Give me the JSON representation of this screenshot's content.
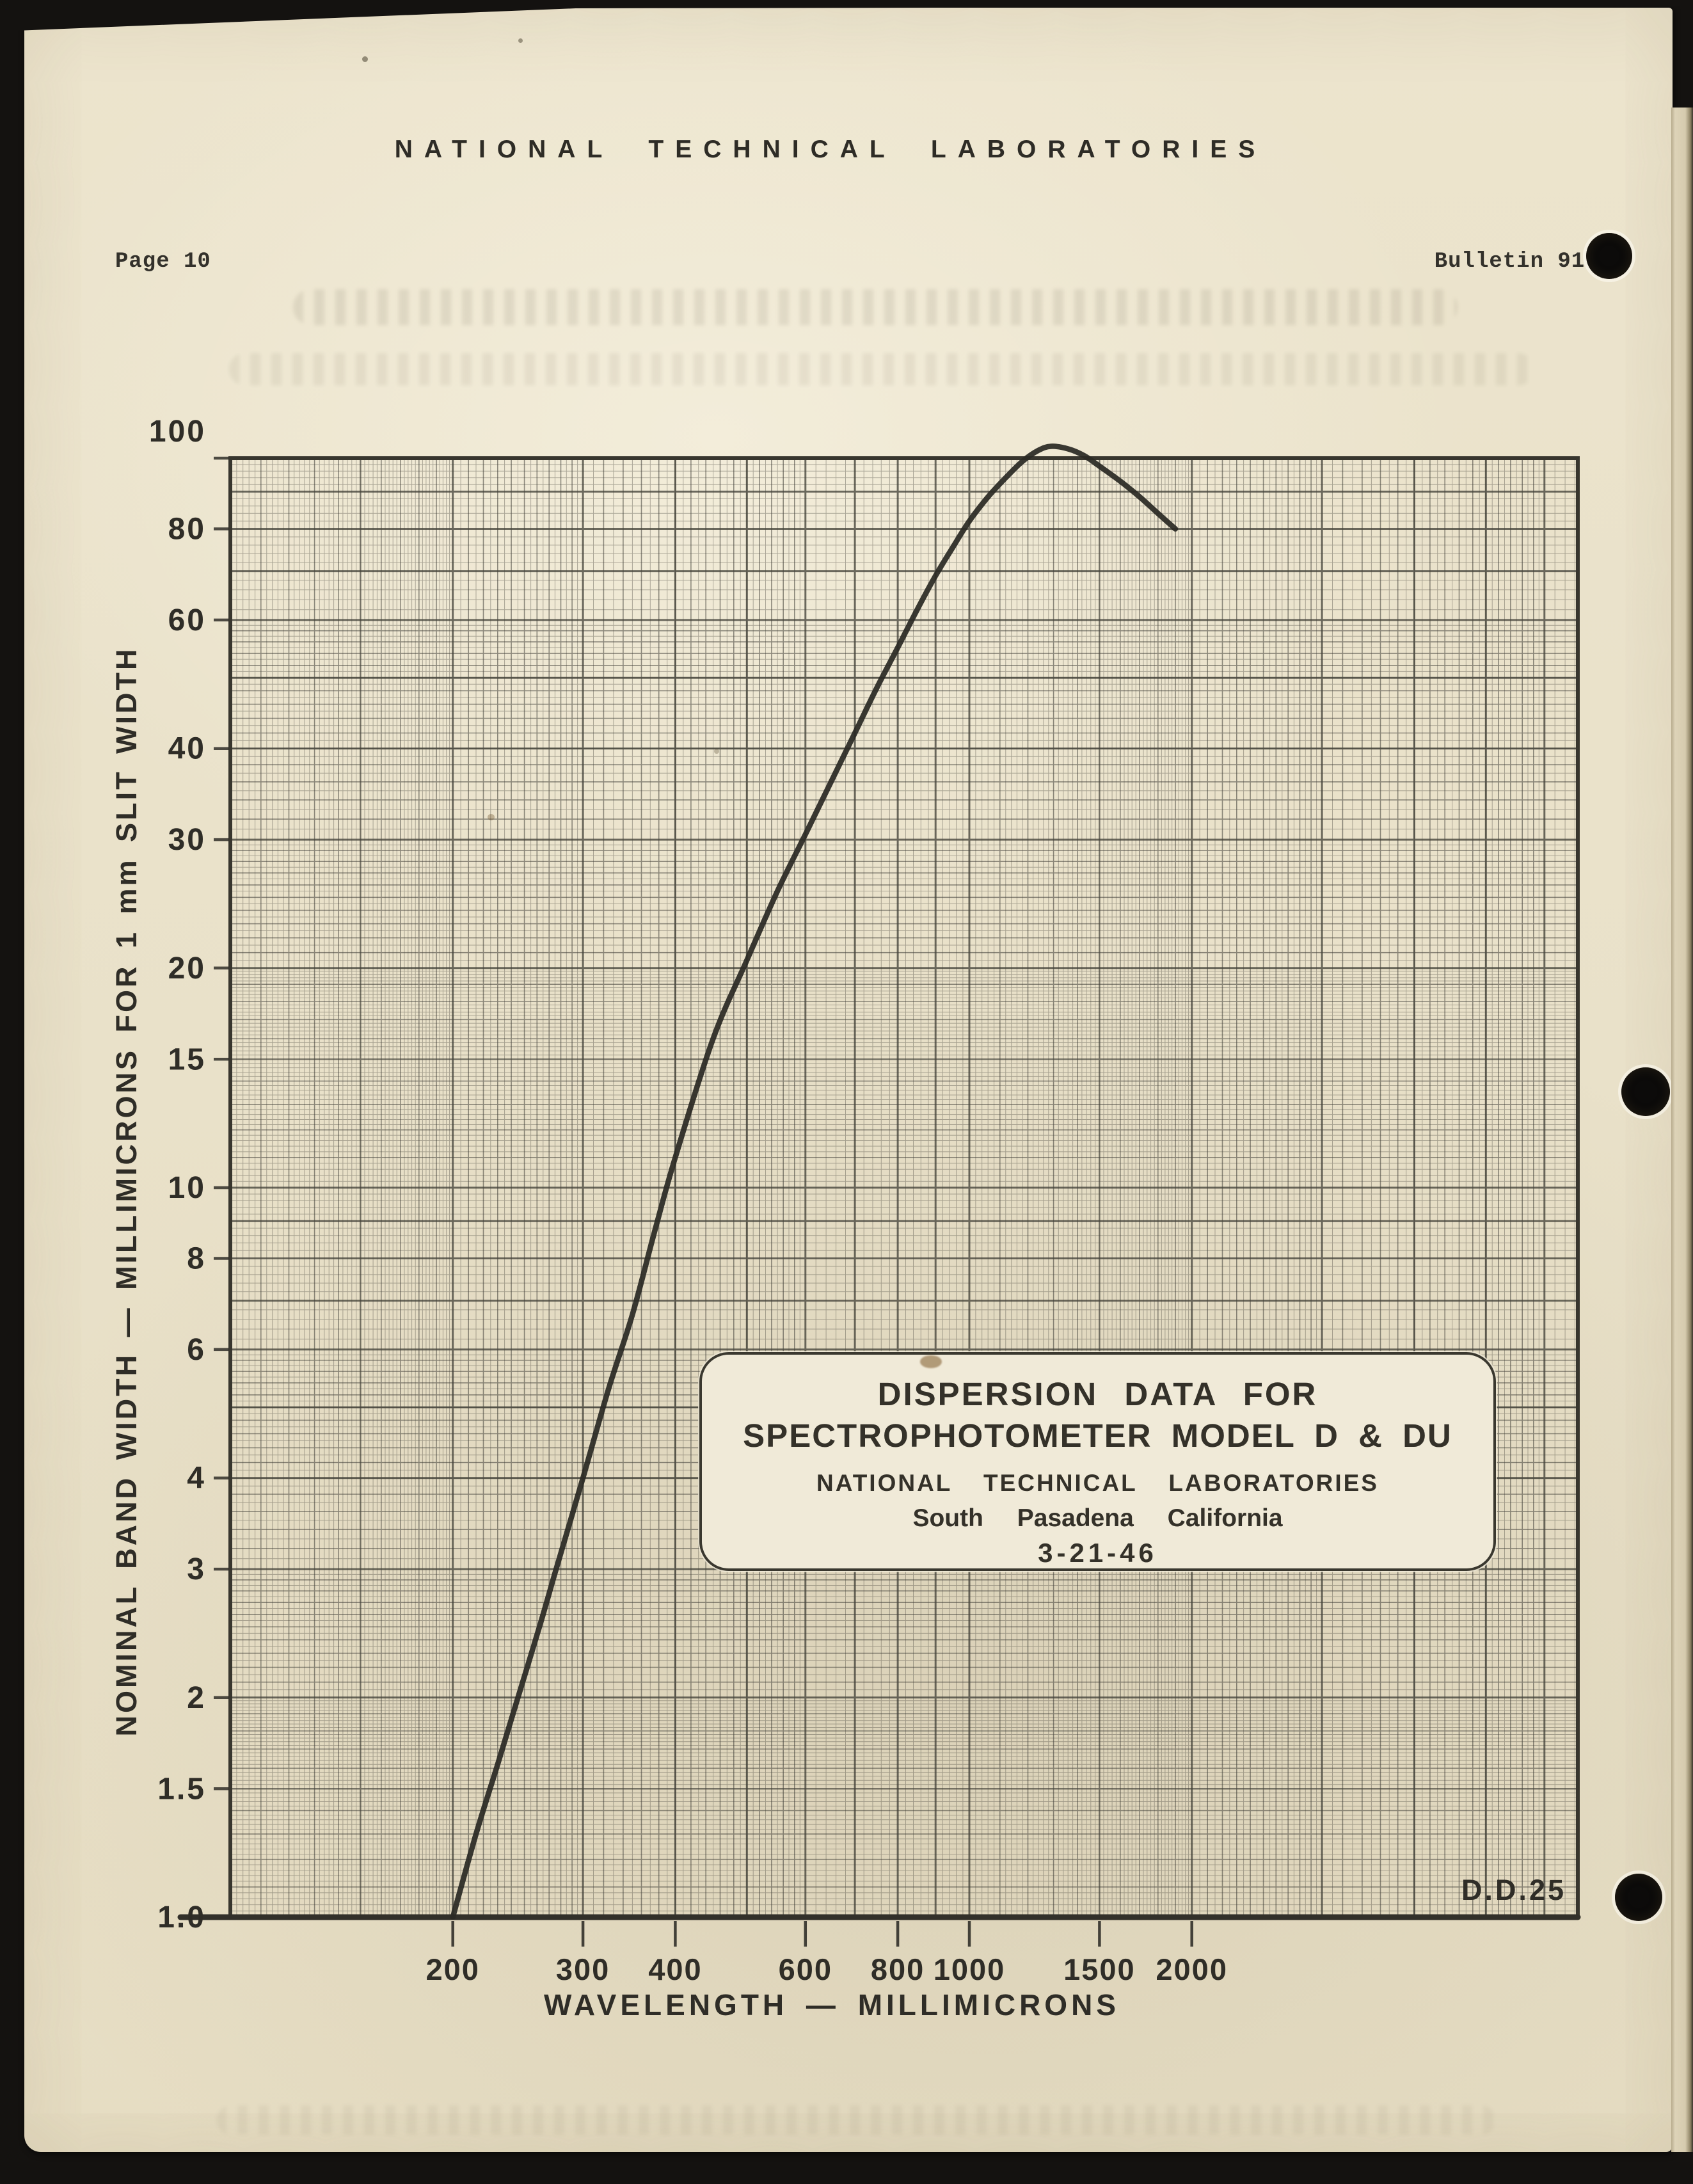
{
  "page": {
    "header": "NATIONAL TECHNICAL LABORATORIES",
    "page_label": "Page 10",
    "bulletin_label": "Bulletin 91-B"
  },
  "chart_data": {
    "type": "line",
    "title_box": {
      "line1": "DISPERSION DATA FOR",
      "line2": "SPECTROPHOTOMETER MODEL D & DU",
      "line3": "NATIONAL TECHNICAL LABORATORIES",
      "line4": "South Pasadena California",
      "line5": "3-21-46"
    },
    "xlabel": "WAVELENGTH — MILLIMICRONS",
    "ylabel": "NOMINAL BAND WIDTH — MILLIMICRONS FOR 1 mm SLIT WIDTH",
    "x_scale": "log",
    "y_scale": "log",
    "xlim": [
      100,
      6600
    ],
    "ylim": [
      1,
      100
    ],
    "x_ticks": [
      "200",
      "300",
      "400",
      "600",
      "800",
      "1000",
      "1500",
      "2000"
    ],
    "y_ticks": [
      "100",
      "80",
      "60",
      "40",
      "30",
      "20",
      "15",
      "10",
      "8",
      "6",
      "4",
      "3",
      "2",
      "1.5",
      "1.0"
    ],
    "grid": "log-log engineering paper, bold lines at integer multiples and 1.5 multiples of each decade",
    "legend_position": "none",
    "corner_label": "D.D.25",
    "series": [
      {
        "name": "nominal band width vs wavelength",
        "points": [
          [
            200,
            1.0
          ],
          [
            215,
            1.3
          ],
          [
            230,
            1.62
          ],
          [
            245,
            2.0
          ],
          [
            262,
            2.5
          ],
          [
            276,
            3.0
          ],
          [
            300,
            4.0
          ],
          [
            325,
            5.3
          ],
          [
            350,
            6.7
          ],
          [
            375,
            8.7
          ],
          [
            400,
            11
          ],
          [
            450,
            16
          ],
          [
            500,
            20.5
          ],
          [
            550,
            25.5
          ],
          [
            600,
            30.5
          ],
          [
            650,
            36
          ],
          [
            700,
            42
          ],
          [
            750,
            48.5
          ],
          [
            800,
            55
          ],
          [
            850,
            62
          ],
          [
            900,
            69
          ],
          [
            950,
            75.5
          ],
          [
            1000,
            82
          ],
          [
            1060,
            88.5
          ],
          [
            1120,
            94
          ],
          [
            1180,
            99
          ],
          [
            1240,
            102.5
          ],
          [
            1290,
            103.8
          ],
          [
            1360,
            103
          ],
          [
            1430,
            100.8
          ],
          [
            1500,
            97.5
          ],
          [
            1600,
            93
          ],
          [
            1700,
            88.5
          ],
          [
            1800,
            84
          ],
          [
            1900,
            80
          ]
        ]
      }
    ]
  },
  "colors": {
    "paper": "#e9e1c9",
    "ink_text": "#2f2d27",
    "grid_line": "#44423a",
    "curve": "#2b2a25",
    "box_background": "#f0ead8",
    "scan_background": "#141210"
  }
}
